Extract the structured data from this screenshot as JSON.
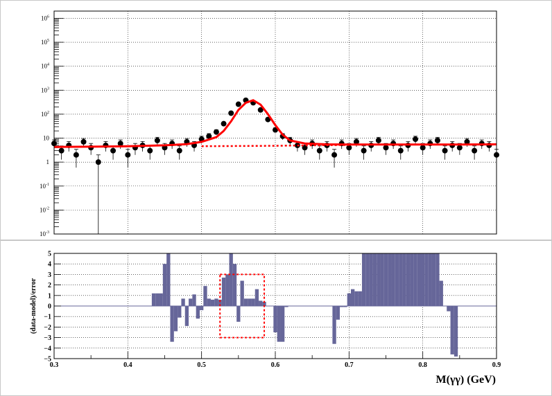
{
  "colors": {
    "background": "#ffffff",
    "pad_border": "#c8c8c8",
    "frame": "#000000",
    "grid": "#000000",
    "data_marker": "#000000",
    "total_fit": "#ff0000",
    "background_fit": "#ff0000",
    "pull_bars": "#666699",
    "highlight_box": "#ff0000"
  },
  "chart_data": [
    {
      "id": "top-fit-panel",
      "type": "scatter",
      "title": "",
      "xlabel": "",
      "ylabel": "",
      "yscale": "log",
      "xlim": [
        0.3,
        0.9
      ],
      "ylim": [
        0.001,
        2000000
      ],
      "grid": true,
      "y_tick_labels": [
        "10-3",
        "10-2",
        "10-1",
        "1",
        "10",
        "102",
        "103",
        "104",
        "105",
        "106"
      ],
      "data_points_description": "events per bin, error bars drawn",
      "data": {
        "x": [
          0.3,
          0.31,
          0.32,
          0.33,
          0.34,
          0.35,
          0.36,
          0.37,
          0.38,
          0.39,
          0.4,
          0.41,
          0.42,
          0.43,
          0.44,
          0.45,
          0.46,
          0.47,
          0.48,
          0.49,
          0.5,
          0.51,
          0.52,
          0.53,
          0.54,
          0.55,
          0.56,
          0.57,
          0.58,
          0.59,
          0.6,
          0.61,
          0.62,
          0.63,
          0.64,
          0.65,
          0.66,
          0.67,
          0.68,
          0.69,
          0.7,
          0.71,
          0.72,
          0.73,
          0.74,
          0.75,
          0.76,
          0.77,
          0.78,
          0.79,
          0.8,
          0.81,
          0.82,
          0.83,
          0.84,
          0.85,
          0.86,
          0.87,
          0.88,
          0.89,
          0.9
        ],
        "y": [
          6,
          3,
          5,
          2,
          7,
          4,
          1,
          5,
          3,
          6,
          2,
          4,
          5,
          3,
          8,
          4,
          6,
          3,
          7,
          5,
          9,
          12,
          18,
          40,
          110,
          260,
          380,
          300,
          150,
          60,
          22,
          12,
          8,
          5,
          4,
          6,
          3,
          5,
          2,
          6,
          4,
          7,
          3,
          5,
          8,
          4,
          6,
          3,
          5,
          9,
          4,
          6,
          8,
          3,
          5,
          4,
          7,
          3,
          6,
          5,
          2
        ]
      },
      "total_fit": {
        "x": [
          0.3,
          0.35,
          0.4,
          0.45,
          0.48,
          0.5,
          0.52,
          0.53,
          0.54,
          0.55,
          0.56,
          0.57,
          0.58,
          0.59,
          0.6,
          0.61,
          0.62,
          0.64,
          0.67,
          0.7,
          0.75,
          0.8,
          0.85,
          0.9
        ],
        "y": [
          4.3,
          4.4,
          4.6,
          5.0,
          5.6,
          7.0,
          11,
          20,
          50,
          150,
          300,
          380,
          250,
          100,
          35,
          14,
          8,
          6,
          5.5,
          5.4,
          5.4,
          5.4,
          5.4,
          5.5
        ]
      },
      "background_fit": {
        "x": [
          0.5,
          0.55,
          0.6,
          0.65,
          0.7
        ],
        "y": [
          4.6,
          4.7,
          4.8,
          5.0,
          5.2
        ]
      }
    },
    {
      "id": "pull-panel",
      "type": "bar",
      "title": "",
      "xlabel": "M(γγ) (GeV)",
      "ylabel": "(data-model)/error",
      "xlim": [
        0.3,
        0.9
      ],
      "ylim": [
        -5,
        5
      ],
      "grid": true,
      "x_ticks": [
        0.3,
        0.4,
        0.5,
        0.6,
        0.7,
        0.8,
        0.9
      ],
      "x_tick_labels": [
        "0.3",
        "0.4",
        "0.5",
        "0.6",
        "0.7",
        "0.8",
        "0.9"
      ],
      "y_ticks": [
        -5,
        -4,
        -3,
        -2,
        -1,
        0,
        1,
        2,
        3,
        4,
        5
      ],
      "y_tick_labels": [
        "−5",
        "−4",
        "−3",
        "−2",
        "−1",
        "0",
        "1",
        "2",
        "3",
        "4",
        "5"
      ],
      "bin_width": 0.005,
      "bars": {
        "x": [
          0.435,
          0.44,
          0.445,
          0.45,
          0.455,
          0.46,
          0.465,
          0.47,
          0.475,
          0.48,
          0.485,
          0.49,
          0.495,
          0.5,
          0.505,
          0.51,
          0.515,
          0.52,
          0.525,
          0.53,
          0.535,
          0.54,
          0.545,
          0.55,
          0.555,
          0.56,
          0.565,
          0.57,
          0.575,
          0.58,
          0.585,
          0.6,
          0.605,
          0.61,
          0.615,
          0.68,
          0.685,
          0.69,
          0.695,
          0.7,
          0.705,
          0.71,
          0.715,
          0.72,
          0.725,
          0.73,
          0.735,
          0.74,
          0.745,
          0.75,
          0.755,
          0.76,
          0.765,
          0.77,
          0.775,
          0.78,
          0.785,
          0.79,
          0.795,
          0.8,
          0.805,
          0.81,
          0.815,
          0.82,
          0.825,
          0.83,
          0.835,
          0.84,
          0.845
        ],
        "values": [
          1.2,
          1.2,
          1.2,
          4.0,
          5.0,
          -3.4,
          -2.4,
          -1.1,
          0.7,
          -1.9,
          0.7,
          1.1,
          -1.2,
          -0.4,
          1.9,
          0.7,
          0.6,
          0.7,
          0.6,
          2.7,
          3.0,
          5.0,
          4.0,
          -1.5,
          2.4,
          0.7,
          0.7,
          0.7,
          1.6,
          0.5,
          0.4,
          -2.5,
          -3.4,
          -3.4,
          -0.1,
          -3.6,
          -1.3,
          -0.1,
          -0.1,
          1.2,
          1.6,
          1.4,
          1.4,
          5.0,
          5.0,
          5.0,
          5.0,
          5.0,
          5.0,
          5.0,
          5.0,
          5.0,
          5.0,
          5.0,
          5.0,
          5.0,
          5.0,
          5.0,
          5.0,
          5.0,
          5.0,
          5.0,
          5.0,
          5.0,
          2.4,
          0.0,
          -0.5,
          -4.6,
          -4.8
        ]
      },
      "highlight_box": {
        "x": [
          0.525,
          0.585
        ],
        "y": [
          -3.0,
          3.0
        ]
      }
    }
  ]
}
